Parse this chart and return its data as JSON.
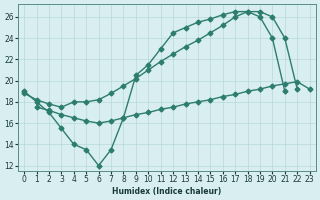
{
  "line1_x": [
    0,
    1,
    2,
    3,
    4,
    5,
    6,
    7,
    8,
    9,
    10,
    11,
    12,
    13,
    14,
    15,
    16,
    17,
    18,
    19,
    20,
    21
  ],
  "line1_y": [
    19.0,
    18.0,
    17.0,
    15.5,
    14.0,
    13.5,
    12.0,
    13.5,
    16.5,
    20.5,
    21.5,
    23.0,
    24.5,
    25.0,
    25.5,
    25.8,
    26.2,
    26.5,
    26.5,
    26.0,
    24.0,
    19.0
  ],
  "line2_x": [
    0,
    1,
    2,
    3,
    4,
    5,
    6,
    7,
    8,
    9,
    10,
    11,
    12,
    13,
    14,
    15,
    16,
    17,
    18,
    19,
    20,
    21,
    22
  ],
  "line2_y": [
    18.8,
    18.2,
    17.8,
    17.5,
    18.0,
    18.0,
    18.2,
    18.8,
    19.5,
    20.2,
    21.0,
    21.8,
    22.5,
    23.2,
    23.8,
    24.5,
    25.2,
    26.0,
    26.5,
    26.5,
    26.0,
    24.0,
    19.2
  ],
  "line3_x": [
    1,
    2,
    3,
    4,
    5,
    6,
    7,
    8,
    9,
    10,
    11,
    12,
    13,
    14,
    15,
    16,
    17,
    18,
    19,
    20,
    21,
    22,
    23
  ],
  "line3_y": [
    17.5,
    17.2,
    16.8,
    16.5,
    16.2,
    16.0,
    16.2,
    16.5,
    16.8,
    17.0,
    17.3,
    17.5,
    17.8,
    18.0,
    18.2,
    18.5,
    18.7,
    19.0,
    19.2,
    19.5,
    19.7,
    19.9,
    19.2
  ],
  "color": "#2d7d6f",
  "bg_color": "#d8eef0",
  "grid_color": "#b8d8dc",
  "xlabel": "Humidex (Indice chaleur)",
  "xlim": [
    -0.5,
    23.5
  ],
  "ylim": [
    11.5,
    27.2
  ],
  "yticks": [
    12,
    14,
    16,
    18,
    20,
    22,
    24,
    26
  ],
  "xticks": [
    0,
    1,
    2,
    3,
    4,
    5,
    6,
    7,
    8,
    9,
    10,
    11,
    12,
    13,
    14,
    15,
    16,
    17,
    18,
    19,
    20,
    21,
    22,
    23
  ],
  "xtick_labels": [
    "0",
    "1",
    "2",
    "3",
    "4",
    "5",
    "6",
    "7",
    "8",
    "9",
    "10",
    "11",
    "12",
    "13",
    "14",
    "15",
    "16",
    "17",
    "18",
    "19",
    "20",
    "21",
    "22",
    "23"
  ],
  "marker": "D",
  "markersize": 2.5,
  "linewidth": 1.0
}
